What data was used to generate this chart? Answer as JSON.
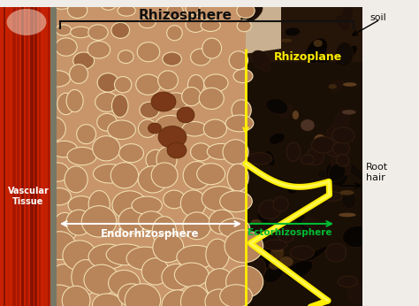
{
  "figsize": [
    4.74,
    3.46
  ],
  "dpi": 100,
  "bg_color": "#f0ede8",
  "labels": {
    "rhizosphere": "Rhizosphere",
    "rhizoplane": "Rhizoplane",
    "endorhizosphere": "Endorhizosphere",
    "ectorhizosphere": "Ectorhizosphere",
    "vascular_tissue": "Vascular\nTissue",
    "soil": "soil",
    "root_hair": "Root\nhair"
  },
  "colors": {
    "vascular_red": "#c82000",
    "vascular_stripe": "#8a1500",
    "vascular_gray": "#777766",
    "cortex_bg": "#c8956a",
    "cortex_cell_fill": "#b8845a",
    "cortex_cell_edge": "#e0c090",
    "cortex_cell_edge2": "#f0ddb0",
    "soil_dark": "#1a0f05",
    "soil_med": "#2d1a08",
    "soil_particle": "#0d0805",
    "soil_light_particle": "#5a3a18",
    "yellow": "#ffee00",
    "green": "#00bb33",
    "white": "#ffffff",
    "black": "#111111",
    "dark_brown": "#3a1f08",
    "mid_brown": "#6b4020",
    "light_brown": "#c8a060"
  }
}
